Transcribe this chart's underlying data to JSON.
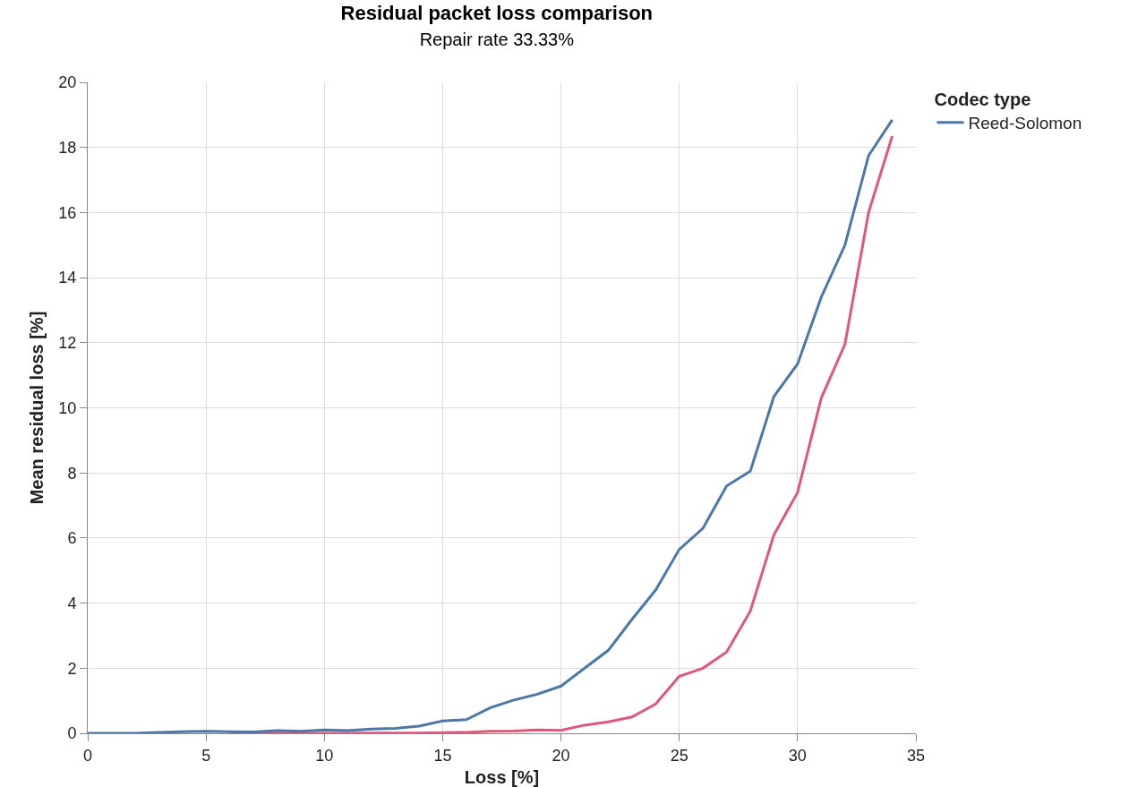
{
  "chart_data": {
    "type": "line",
    "title": "Residual packet loss comparison",
    "subtitle": "Repair rate 33.33%",
    "xlabel": "Loss [%]",
    "ylabel": "Mean residual loss [%]",
    "legend_title": "Codec type",
    "x": [
      0,
      1,
      2,
      3,
      4,
      5,
      6,
      7,
      8,
      9,
      10,
      11,
      12,
      13,
      14,
      15,
      16,
      17,
      18,
      19,
      20,
      21,
      22,
      23,
      24,
      25,
      26,
      27,
      28,
      29,
      30,
      31,
      32,
      33,
      34
    ],
    "series": [
      {
        "name": "Reed-Solomon",
        "color": "#4c78a8",
        "values": [
          0,
          0,
          0,
          0.03,
          0.05,
          0.06,
          0.05,
          0.04,
          0.08,
          0.06,
          0.1,
          0.08,
          0.13,
          0.15,
          0.22,
          0.38,
          0.42,
          0.78,
          1.02,
          1.2,
          1.45,
          2.0,
          2.55,
          3.5,
          4.4,
          5.65,
          6.3,
          7.6,
          8.05,
          10.35,
          11.35,
          13.4,
          15.0,
          17.75,
          18.85
        ]
      },
      {
        "color": "#e0577a",
        "values": [
          null,
          null,
          null,
          null,
          null,
          null,
          0,
          0,
          0,
          0,
          0,
          0,
          0.01,
          0.01,
          0.01,
          0.02,
          0.03,
          0.06,
          0.07,
          0.1,
          0.09,
          0.25,
          0.35,
          0.5,
          0.9,
          1.75,
          2.0,
          2.5,
          3.75,
          6.1,
          7.4,
          10.3,
          11.95,
          16.0,
          18.35
        ]
      }
    ],
    "xlim": [
      0,
      35
    ],
    "xticks": [
      0,
      5,
      10,
      15,
      20,
      25,
      30,
      35
    ],
    "ylim": [
      0,
      20
    ],
    "yticks": [
      0,
      2,
      4,
      6,
      8,
      10,
      12,
      14,
      16,
      18,
      20
    ],
    "grid": true,
    "legend": "top right",
    "marker": "none",
    "line_style": "solid"
  }
}
